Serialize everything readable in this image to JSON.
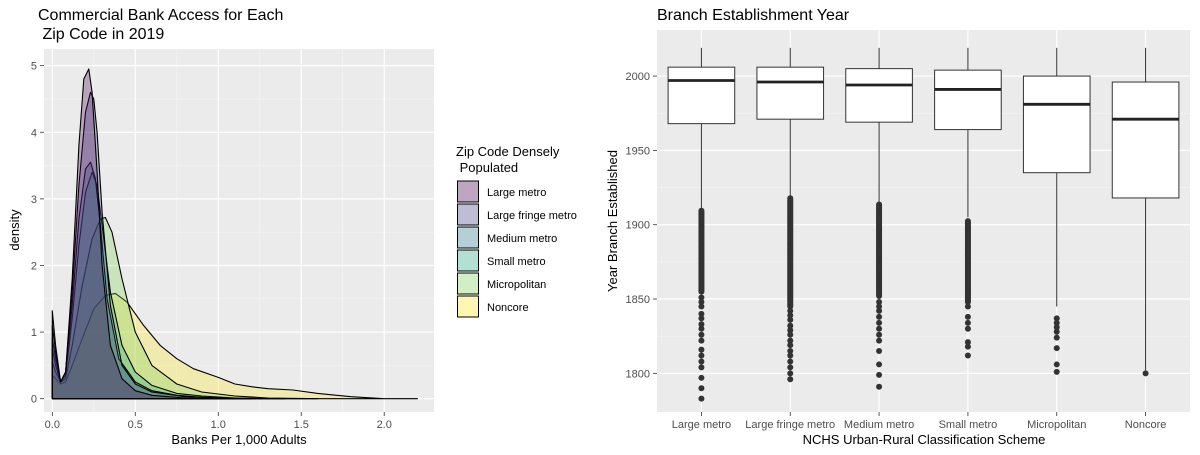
{
  "chart_data": [
    {
      "type": "area",
      "subtype": "density",
      "title_lines": [
        "Commercial Bank Access for Each",
        " Zip Code in 2019"
      ],
      "xlabel": "Banks Per 1,000 Adults",
      "ylabel": "density",
      "xlim": [
        -0.05,
        2.3
      ],
      "ylim": [
        -0.2,
        5.25
      ],
      "x_ticks": [
        "0.0",
        "0.5",
        "1.0",
        "1.5",
        "2.0"
      ],
      "x_tick_values": [
        0,
        0.5,
        1.0,
        1.5,
        2.0
      ],
      "y_ticks": [
        "0",
        "1",
        "2",
        "3",
        "4",
        "5"
      ],
      "y_tick_values": [
        0,
        1,
        2,
        3,
        4,
        5
      ],
      "grid": true,
      "legend": {
        "title_lines": [
          "Zip Code Densely",
          " Populated"
        ],
        "position": "right"
      },
      "series": [
        {
          "name": "Noncore",
          "color": "#fde725",
          "x": [
            0,
            0.02,
            0.05,
            0.08,
            0.12,
            0.18,
            0.25,
            0.32,
            0.38,
            0.45,
            0.55,
            0.65,
            0.75,
            0.85,
            1.0,
            1.1,
            1.2,
            1.3,
            1.45,
            1.6,
            1.8,
            2.0,
            2.2
          ],
          "y": [
            0.35,
            0.3,
            0.22,
            0.25,
            0.5,
            0.9,
            1.35,
            1.55,
            1.58,
            1.45,
            1.1,
            0.8,
            0.6,
            0.45,
            0.32,
            0.22,
            0.18,
            0.15,
            0.13,
            0.08,
            0.03,
            0.0,
            0.0
          ]
        },
        {
          "name": "Micropolitan",
          "color": "#7ad151",
          "x": [
            0,
            0.02,
            0.05,
            0.08,
            0.12,
            0.18,
            0.24,
            0.29,
            0.32,
            0.36,
            0.42,
            0.5,
            0.6,
            0.75,
            0.9,
            1.1,
            1.3,
            1.6
          ],
          "y": [
            0.55,
            0.4,
            0.25,
            0.3,
            0.8,
            1.7,
            2.4,
            2.7,
            2.72,
            2.5,
            1.8,
            1.0,
            0.5,
            0.22,
            0.1,
            0.04,
            0.01,
            0.0
          ]
        },
        {
          "name": "Small metro",
          "color": "#22a884",
          "x": [
            0,
            0.02,
            0.05,
            0.08,
            0.12,
            0.16,
            0.2,
            0.24,
            0.27,
            0.3,
            0.35,
            0.42,
            0.5,
            0.6,
            0.75,
            0.9,
            1.1,
            1.4
          ],
          "y": [
            0.75,
            0.5,
            0.25,
            0.35,
            1.2,
            2.3,
            3.1,
            3.4,
            3.2,
            2.6,
            1.6,
            0.8,
            0.4,
            0.2,
            0.08,
            0.04,
            0.01,
            0.0
          ]
        },
        {
          "name": "Medium metro",
          "color": "#2a788e",
          "x": [
            0,
            0.02,
            0.05,
            0.08,
            0.12,
            0.16,
            0.2,
            0.23,
            0.26,
            0.29,
            0.33,
            0.4,
            0.5,
            0.6,
            0.75,
            0.9,
            1.2
          ],
          "y": [
            0.9,
            0.6,
            0.25,
            0.4,
            1.4,
            2.7,
            3.45,
            3.55,
            3.3,
            2.6,
            1.5,
            0.6,
            0.25,
            0.12,
            0.05,
            0.02,
            0.0
          ]
        },
        {
          "name": "Large fringe metro",
          "color": "#414487",
          "x": [
            0,
            0.02,
            0.05,
            0.08,
            0.12,
            0.16,
            0.2,
            0.23,
            0.25,
            0.27,
            0.3,
            0.35,
            0.42,
            0.5,
            0.6,
            0.8,
            1.0,
            1.2
          ],
          "y": [
            1.1,
            0.7,
            0.25,
            0.4,
            1.6,
            3.2,
            4.3,
            4.6,
            4.5,
            4.0,
            2.8,
            1.4,
            0.5,
            0.22,
            0.1,
            0.03,
            0.01,
            0.0
          ]
        },
        {
          "name": "Large metro",
          "color": "#440154",
          "x": [
            0,
            0.02,
            0.05,
            0.08,
            0.12,
            0.16,
            0.19,
            0.22,
            0.24,
            0.27,
            0.3,
            0.35,
            0.42,
            0.5,
            0.6,
            0.8,
            1.0
          ],
          "y": [
            1.32,
            0.8,
            0.25,
            0.4,
            1.8,
            3.8,
            4.8,
            4.95,
            4.6,
            3.4,
            2.0,
            0.8,
            0.3,
            0.12,
            0.05,
            0.01,
            0.0
          ]
        }
      ]
    },
    {
      "type": "box",
      "title": "Branch Establishment Year",
      "xlabel": "NCHS Urban-Rural Classification Scheme",
      "ylabel": "Year Branch Established",
      "ylim": [
        1774,
        2031
      ],
      "y_ticks": [
        "1800",
        "1850",
        "1900",
        "1950",
        "2000"
      ],
      "y_tick_values": [
        1800,
        1850,
        1900,
        1950,
        2000
      ],
      "grid": true,
      "categories": [
        "Large metro",
        "Large fringe metro",
        "Medium metro",
        "Small metro",
        "Micropolitan",
        "Noncore"
      ],
      "boxes": [
        {
          "q1": 1968,
          "median": 1997,
          "q3": 2006,
          "whisker_low": 1911,
          "whisker_high": 2019,
          "outliers": {
            "dense_range": [
              1855,
              1910
            ],
            "points": [
              1851,
              1848,
              1845,
              1840,
              1837,
              1833,
              1830,
              1826,
              1822,
              1816,
              1812,
              1808,
              1804,
              1797,
              1790,
              1783
            ]
          }
        },
        {
          "q1": 1971,
          "median": 1996,
          "q3": 2006,
          "whisker_low": 1919,
          "whisker_high": 2019,
          "outliers": {
            "dense_range": [
              1845,
              1918
            ],
            "points": [
              1842,
              1839,
              1836,
              1832,
              1829,
              1826,
              1822,
              1819,
              1815,
              1812,
              1808,
              1804,
              1800,
              1796
            ]
          }
        },
        {
          "q1": 1969,
          "median": 1994,
          "q3": 2005,
          "whisker_low": 1915,
          "whisker_high": 2019,
          "outliers": {
            "dense_range": [
              1852,
              1914
            ],
            "points": [
              1848,
              1845,
              1842,
              1838,
              1834,
              1830,
              1826,
              1822,
              1815,
              1806,
              1799,
              1791
            ]
          }
        },
        {
          "q1": 1964,
          "median": 1991,
          "q3": 2004,
          "whisker_low": 1905,
          "whisker_high": 2019,
          "outliers": {
            "dense_range": [
              1848,
              1903
            ],
            "points": [
              1845,
              1838,
              1834,
              1830,
              1821,
              1818,
              1812
            ]
          }
        },
        {
          "q1": 1935,
          "median": 1981,
          "q3": 2000,
          "whisker_low": 1845,
          "whisker_high": 2019,
          "outliers": {
            "points": [
              1837,
              1834,
              1831,
              1828,
              1824,
              1817,
              1806,
              1801
            ]
          }
        },
        {
          "q1": 1918,
          "median": 1971,
          "q3": 1996,
          "whisker_low": 1802,
          "whisker_high": 2019,
          "outliers": {
            "points": [
              1800
            ]
          }
        }
      ]
    }
  ]
}
